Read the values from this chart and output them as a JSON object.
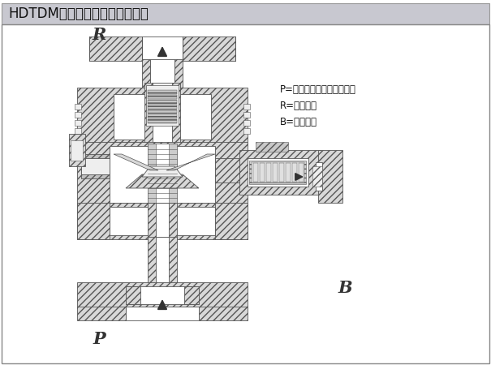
{
  "title": "HDTDM自动再循环阀示图如下：",
  "title_fontsize": 12,
  "title_bg_color": "#c8c8d0",
  "bg_color": "#ffffff",
  "legend_lines": [
    "P=阀门入口（接泵的出口）",
    "R=阀门出口",
    "B=旁路出口"
  ],
  "label_R": "R",
  "label_P": "P",
  "label_B": "B",
  "line_color": "#555555",
  "dark_color": "#333333",
  "border_color": "#888888",
  "hatch_fc": "#d8d8d8",
  "white_fc": "#ffffff",
  "light_fc": "#eeeeee"
}
